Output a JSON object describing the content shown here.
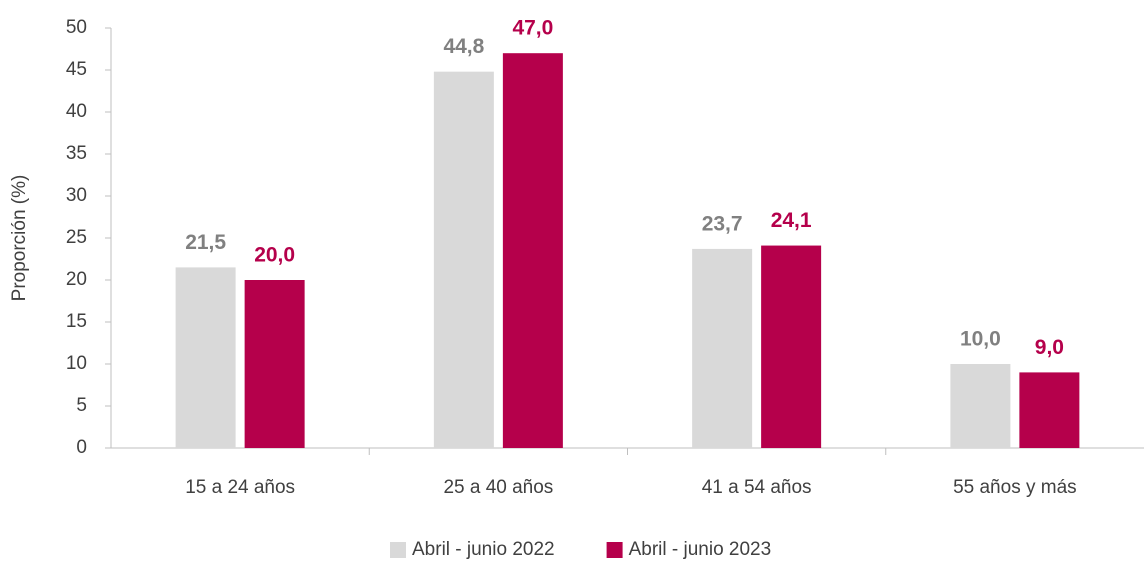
{
  "chart_data": {
    "type": "bar",
    "y_axis_label": "Proporción (%)",
    "categories": [
      "15 a 24 años",
      "25 a 40 años",
      "41 a 54 años",
      "55 años y más"
    ],
    "series": [
      {
        "name": "Abril - junio 2022",
        "color": "#d9d9d9",
        "label_color": "#808080",
        "values": [
          21.5,
          44.8,
          23.7,
          10.0
        ],
        "value_labels": [
          "21,5",
          "44,8",
          "23,7",
          "10,0"
        ]
      },
      {
        "name": "Abril - junio 2023",
        "color": "#b5004b",
        "label_color": "#b5004b",
        "values": [
          20.0,
          47.0,
          24.1,
          9.0
        ],
        "value_labels": [
          "20,0",
          "47,0",
          "24,1",
          "9,0"
        ]
      }
    ],
    "ylim": [
      0,
      50
    ],
    "yticks": [
      0,
      5,
      10,
      15,
      20,
      25,
      30,
      35,
      40,
      45,
      50
    ],
    "grid": false,
    "legend": "bottom"
  }
}
